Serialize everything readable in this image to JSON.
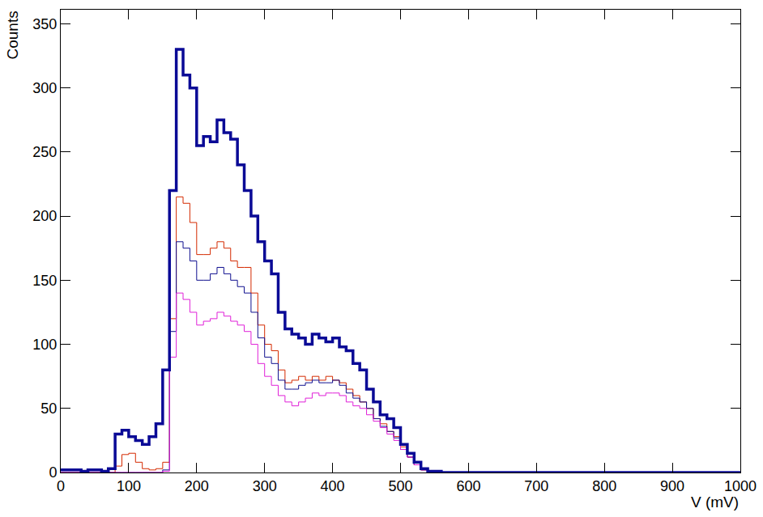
{
  "chart_data": {
    "type": "histogram",
    "x_label": "V (mV)",
    "y_label": "Counts",
    "bins": [
      0,
      10,
      20,
      30,
      40,
      50,
      60,
      70,
      80,
      90,
      100,
      110,
      120,
      130,
      140,
      150,
      160,
      170,
      180,
      190,
      200,
      210,
      220,
      230,
      240,
      250,
      260,
      270,
      280,
      290,
      300,
      310,
      320,
      330,
      340,
      350,
      360,
      370,
      380,
      390,
      400,
      410,
      420,
      430,
      440,
      450,
      460,
      470,
      480,
      490,
      500,
      510,
      520,
      530,
      540,
      550,
      560,
      570,
      580,
      590,
      600,
      610,
      620,
      630,
      640,
      650,
      660,
      670,
      680,
      690,
      700,
      710,
      720,
      730,
      740,
      750,
      760,
      770,
      780,
      790,
      800,
      810,
      820,
      830,
      840,
      850,
      860,
      870,
      880,
      890,
      900,
      910,
      920,
      930,
      940,
      950,
      960,
      970,
      980,
      990,
      1000
    ],
    "series": [
      {
        "color": "#d42a00",
        "line_style": "solid",
        "values": [
          0,
          0,
          0,
          0,
          0,
          0,
          0,
          0,
          5,
          14,
          15,
          8,
          3,
          2,
          3,
          8,
          120,
          215,
          210,
          195,
          170,
          170,
          175,
          180,
          175,
          165,
          160,
          160,
          140,
          115,
          100,
          95,
          80,
          70,
          72,
          75,
          72,
          75,
          72,
          75,
          72,
          70,
          65,
          60,
          55,
          50,
          42,
          38,
          32,
          28,
          20,
          12,
          6,
          2,
          1,
          0,
          0,
          0,
          0,
          0,
          0,
          0,
          0,
          0,
          0,
          0,
          0,
          0,
          0,
          0,
          0,
          0,
          0,
          0,
          0,
          0,
          0,
          0,
          0,
          0,
          0,
          0,
          0,
          0,
          0,
          0,
          0,
          0,
          0,
          0,
          0,
          0,
          0,
          0,
          0,
          0,
          0,
          0,
          0,
          0
        ]
      },
      {
        "color": "#10108f",
        "line_style": "solid",
        "values": [
          0,
          0,
          0,
          0,
          0,
          0,
          0,
          0,
          0,
          0,
          0,
          0,
          0,
          0,
          0,
          2,
          110,
          180,
          175,
          165,
          150,
          150,
          155,
          160,
          155,
          150,
          145,
          140,
          125,
          105,
          90,
          85,
          72,
          65,
          65,
          68,
          70,
          72,
          70,
          70,
          72,
          68,
          62,
          58,
          55,
          50,
          42,
          36,
          32,
          27,
          18,
          12,
          6,
          2,
          1,
          0,
          0,
          0,
          0,
          0,
          0,
          0,
          0,
          0,
          0,
          0,
          0,
          0,
          0,
          0,
          0,
          0,
          0,
          0,
          0,
          0,
          0,
          0,
          0,
          0,
          0,
          0,
          0,
          0,
          0,
          0,
          0,
          0,
          0,
          0,
          0,
          0,
          0,
          0,
          0,
          0,
          0,
          0,
          0,
          0
        ]
      },
      {
        "color": "#e020d8",
        "line_style": "solid",
        "values": [
          0,
          0,
          0,
          0,
          0,
          0,
          0,
          0,
          0,
          0,
          0,
          0,
          0,
          0,
          0,
          1,
          90,
          140,
          135,
          125,
          115,
          118,
          120,
          125,
          122,
          118,
          115,
          110,
          100,
          85,
          75,
          68,
          60,
          55,
          52,
          55,
          58,
          62,
          60,
          62,
          62,
          60,
          55,
          52,
          50,
          45,
          40,
          35,
          30,
          25,
          18,
          12,
          6,
          2,
          1,
          0,
          0,
          0,
          0,
          0,
          0,
          0,
          0,
          0,
          0,
          0,
          0,
          0,
          0,
          0,
          0,
          0,
          0,
          0,
          0,
          0,
          0,
          0,
          0,
          0,
          0,
          0,
          0,
          0,
          0,
          0,
          0,
          0,
          0,
          0,
          0,
          0,
          0,
          0,
          0,
          0,
          0,
          0,
          0,
          0
        ]
      },
      {
        "color": "#0a0a96",
        "line_style": "thick",
        "values": [
          2,
          2,
          2,
          1,
          2,
          2,
          1,
          3,
          30,
          33,
          28,
          25,
          22,
          28,
          38,
          80,
          220,
          330,
          310,
          300,
          255,
          262,
          258,
          275,
          265,
          260,
          240,
          220,
          200,
          180,
          165,
          155,
          125,
          112,
          108,
          105,
          100,
          108,
          105,
          102,
          105,
          98,
          95,
          85,
          80,
          65,
          55,
          45,
          42,
          35,
          22,
          15,
          8,
          3,
          1,
          1,
          0,
          0,
          0,
          0,
          0,
          0,
          0,
          0,
          0,
          0,
          0,
          0,
          0,
          0,
          0,
          0,
          0,
          0,
          0,
          0,
          0,
          0,
          0,
          0,
          0,
          0,
          0,
          0,
          0,
          0,
          0,
          0,
          0,
          0,
          0,
          0,
          0,
          0,
          0,
          0,
          0,
          0,
          0,
          0
        ]
      }
    ],
    "xlim": [
      0,
      1000
    ],
    "ylim": [
      0,
      361
    ],
    "xticks": [
      0,
      100,
      200,
      300,
      400,
      500,
      600,
      700,
      800,
      900,
      1000
    ],
    "yticks": [
      0,
      50,
      100,
      150,
      200,
      250,
      300,
      350
    ],
    "grid": false
  }
}
